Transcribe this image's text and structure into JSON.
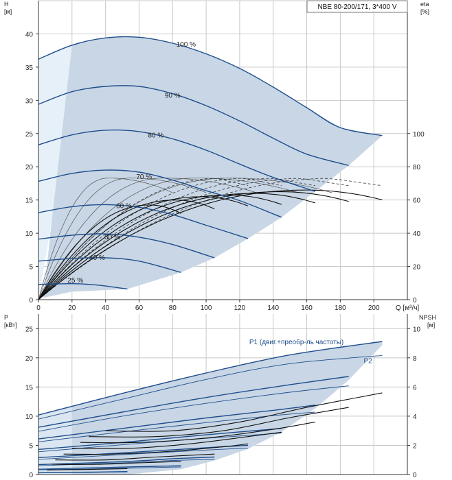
{
  "header": {
    "model": "NBE 80-200/171, 3*400 V"
  },
  "colors": {
    "grid": "#c8c8c8",
    "region": "#c8d6e5",
    "region_light": "#e6f0f8",
    "curve": "#1f4e8c",
    "eff": "#111111",
    "thin": "#555555"
  },
  "chart_data": [
    {
      "type": "line",
      "id": "head",
      "ylabel": "H",
      "yunit": "[м]",
      "y2label": "eta",
      "y2unit": "[%]",
      "xlabel": "Q [м³/ч]",
      "xlim": [
        0,
        220
      ],
      "ylim": [
        0,
        45
      ],
      "y2lim": [
        0,
        180
      ],
      "x_ticks": [
        "0",
        "20",
        "40",
        "60",
        "80",
        "100",
        "120",
        "140",
        "160",
        "180",
        "200"
      ],
      "y_ticks": [
        "0",
        "5",
        "10",
        "15",
        "20",
        "25",
        "30",
        "35",
        "40"
      ],
      "y2_ticks": [
        "0",
        "20",
        "40",
        "60",
        "80",
        "100"
      ],
      "grid": true,
      "speed_curves": [
        {
          "label": "100 %",
          "label_pos": [
            88,
            38.5
          ],
          "points": [
            [
              0,
              36.2
            ],
            [
              20,
              38.3
            ],
            [
              40,
              39.4
            ],
            [
              60,
              39.5
            ],
            [
              80,
              38.6
            ],
            [
              100,
              37.0
            ],
            [
              120,
              34.8
            ],
            [
              140,
              32.0
            ],
            [
              160,
              28.9
            ],
            [
              180,
              25.9
            ],
            [
              205,
              24.7
            ]
          ]
        },
        {
          "label": "90 %",
          "label_pos": [
            80,
            30.8
          ],
          "points": [
            [
              0,
              29.4
            ],
            [
              20,
              31.3
            ],
            [
              40,
              32.1
            ],
            [
              60,
              32.1
            ],
            [
              80,
              31.0
            ],
            [
              100,
              29.2
            ],
            [
              120,
              26.9
            ],
            [
              140,
              24.3
            ],
            [
              160,
              21.9
            ],
            [
              185,
              20.2
            ]
          ]
        },
        {
          "label": "80 %",
          "label_pos": [
            70,
            24.8
          ],
          "points": [
            [
              0,
              23.3
            ],
            [
              20,
              24.8
            ],
            [
              40,
              25.5
            ],
            [
              60,
              25.3
            ],
            [
              80,
              24.2
            ],
            [
              100,
              22.5
            ],
            [
              120,
              20.4
            ],
            [
              140,
              18.4
            ],
            [
              165,
              16.3
            ]
          ]
        },
        {
          "label": "70 %",
          "label_pos": [
            63,
            18.6
          ],
          "points": [
            [
              0,
              17.8
            ],
            [
              20,
              19.0
            ],
            [
              40,
              19.5
            ],
            [
              60,
              19.2
            ],
            [
              80,
              18.0
            ],
            [
              100,
              16.4
            ],
            [
              120,
              14.9
            ],
            [
              145,
              12.4
            ]
          ]
        },
        {
          "label": "60 %",
          "label_pos": [
            51,
            14.2
          ],
          "points": [
            [
              0,
              13.1
            ],
            [
              20,
              14.0
            ],
            [
              40,
              14.3
            ],
            [
              60,
              13.9
            ],
            [
              80,
              12.8
            ],
            [
              100,
              11.2
            ],
            [
              125,
              9.2
            ]
          ]
        },
        {
          "label": "50 %",
          "label_pos": [
            44,
            9.5
          ],
          "points": [
            [
              0,
              9.1
            ],
            [
              20,
              9.7
            ],
            [
              40,
              9.9
            ],
            [
              60,
              9.4
            ],
            [
              80,
              8.3
            ],
            [
              105,
              6.3
            ]
          ]
        },
        {
          "label": "40 %",
          "label_pos": [
            35,
            6.4
          ],
          "points": [
            [
              0,
              5.8
            ],
            [
              20,
              6.2
            ],
            [
              40,
              6.3
            ],
            [
              60,
              5.8
            ],
            [
              85,
              4.1
            ]
          ]
        },
        {
          "label": "25 %",
          "label_pos": [
            22,
            3.0
          ],
          "points": [
            [
              0,
              2.3
            ],
            [
              20,
              2.4
            ],
            [
              35,
              2.2
            ],
            [
              53,
              1.6
            ]
          ]
        }
      ],
      "efficiency_curves": [
        {
          "peak": 66,
          "qend": 205
        },
        {
          "peak": 65,
          "qend": 185
        },
        {
          "peak": 64,
          "qend": 165
        },
        {
          "peak": 63,
          "qend": 145
        },
        {
          "peak": 62,
          "qend": 125
        },
        {
          "peak": 60,
          "qend": 105
        },
        {
          "peak": 57,
          "qend": 85
        }
      ],
      "dashed_efficiency": [
        {
          "peak": 73,
          "qend": 205
        },
        {
          "peak": 73,
          "qend": 185
        },
        {
          "peak": 73,
          "qend": 165
        },
        {
          "peak": 73,
          "qend": 145
        },
        {
          "peak": 73,
          "qend": 125
        }
      ],
      "thin_curves": [
        {
          "peak": 18.3,
          "qpeak": 42,
          "qend": 80
        },
        {
          "peak": 18.3,
          "qpeak": 55,
          "qend": 100
        },
        {
          "peak": 18.3,
          "qpeak": 75,
          "qend": 130
        },
        {
          "peak": 18.3,
          "qpeak": 95,
          "qend": 155
        },
        {
          "peak": 18.3,
          "qpeak": 115,
          "qend": 175
        }
      ]
    },
    {
      "type": "line",
      "id": "power",
      "ylabel": "P",
      "yunit": "[кВт]",
      "y2label": "NPSH",
      "y2unit": "[м]",
      "xlim": [
        0,
        220
      ],
      "ylim": [
        0,
        27.5
      ],
      "y2lim": [
        0,
        11
      ],
      "y_ticks": [
        "0",
        "5",
        "10",
        "15",
        "20",
        "25"
      ],
      "y2_ticks": [
        "0",
        "2",
        "4",
        "6",
        "8",
        "10"
      ],
      "grid": true,
      "series_labels": [
        "P1 (двиг.+преобр-ль частоты)",
        "P2"
      ],
      "p1_curves": [
        {
          "points": [
            [
              0,
              10.2
            ],
            [
              50,
              13.9
            ],
            [
              100,
              17.4
            ],
            [
              150,
              20.5
            ],
            [
              205,
              22.8
            ]
          ]
        },
        {
          "points": [
            [
              0,
              8.1
            ],
            [
              50,
              10.7
            ],
            [
              100,
              13.2
            ],
            [
              150,
              15.4
            ],
            [
              185,
              16.8
            ]
          ]
        },
        {
          "points": [
            [
              0,
              6.1
            ],
            [
              50,
              7.9
            ],
            [
              100,
              9.7
            ],
            [
              140,
              11.0
            ],
            [
              165,
              11.9
            ]
          ]
        },
        {
          "points": [
            [
              0,
              4.3
            ],
            [
              50,
              5.5
            ],
            [
              100,
              6.8
            ],
            [
              145,
              7.9
            ]
          ]
        },
        {
          "points": [
            [
              0,
              2.9
            ],
            [
              50,
              3.7
            ],
            [
              100,
              4.6
            ],
            [
              125,
              5.0
            ]
          ]
        },
        {
          "points": [
            [
              0,
              1.7
            ],
            [
              50,
              2.2
            ],
            [
              80,
              2.7
            ],
            [
              105,
              3.0
            ]
          ]
        },
        {
          "points": [
            [
              0,
              0.9
            ],
            [
              40,
              1.2
            ],
            [
              85,
              1.5
            ]
          ]
        },
        {
          "points": [
            [
              0,
              0.3
            ],
            [
              30,
              0.4
            ],
            [
              53,
              0.5
            ]
          ]
        }
      ],
      "p2_curves": [
        {
          "points": [
            [
              0,
              9.5
            ],
            [
              50,
              12.9
            ],
            [
              100,
              16.3
            ],
            [
              150,
              19.0
            ],
            [
              205,
              20.4
            ]
          ]
        },
        {
          "points": [
            [
              0,
              7.4
            ],
            [
              50,
              10.0
            ],
            [
              100,
              12.2
            ],
            [
              150,
              14.1
            ],
            [
              185,
              15.2
            ]
          ]
        },
        {
          "points": [
            [
              0,
              5.6
            ],
            [
              50,
              7.3
            ],
            [
              100,
              8.9
            ],
            [
              140,
              10.1
            ],
            [
              165,
              10.7
            ]
          ]
        },
        {
          "points": [
            [
              0,
              3.9
            ],
            [
              50,
              5.1
            ],
            [
              100,
              6.2
            ],
            [
              145,
              7.1
            ]
          ]
        },
        {
          "points": [
            [
              0,
              2.6
            ],
            [
              50,
              3.4
            ],
            [
              100,
              4.2
            ],
            [
              125,
              4.5
            ]
          ]
        },
        {
          "points": [
            [
              0,
              1.5
            ],
            [
              50,
              2.0
            ],
            [
              80,
              2.4
            ],
            [
              105,
              2.6
            ]
          ]
        },
        {
          "points": [
            [
              0,
              0.8
            ],
            [
              40,
              1.0
            ],
            [
              85,
              1.3
            ]
          ]
        },
        {
          "points": [
            [
              0,
              0.3
            ],
            [
              30,
              0.35
            ],
            [
              53,
              0.45
            ]
          ]
        }
      ],
      "npsh_curves": [
        {
          "points": [
            [
              40,
              3.0
            ],
            [
              80,
              3.0
            ],
            [
              120,
              3.6
            ],
            [
              160,
              4.6
            ],
            [
              205,
              5.6
            ]
          ]
        },
        {
          "points": [
            [
              30,
              2.6
            ],
            [
              70,
              2.6
            ],
            [
              110,
              3.0
            ],
            [
              150,
              3.9
            ],
            [
              185,
              4.6
            ]
          ]
        },
        {
          "points": [
            [
              25,
              2.2
            ],
            [
              60,
              2.2
            ],
            [
              100,
              2.5
            ],
            [
              140,
              3.1
            ],
            [
              165,
              3.6
            ]
          ]
        },
        {
          "points": [
            [
              20,
              1.8
            ],
            [
              55,
              1.8
            ],
            [
              90,
              2.1
            ],
            [
              125,
              2.6
            ],
            [
              145,
              2.9
            ]
          ]
        },
        {
          "points": [
            [
              15,
              1.4
            ],
            [
              45,
              1.4
            ],
            [
              80,
              1.6
            ],
            [
              110,
              1.9
            ],
            [
              125,
              2.1
            ]
          ]
        },
        {
          "points": [
            [
              10,
              1.0
            ],
            [
              40,
              1.0
            ],
            [
              70,
              1.2
            ],
            [
              105,
              1.4
            ]
          ]
        },
        {
          "points": [
            [
              8,
              0.7
            ],
            [
              35,
              0.7
            ],
            [
              60,
              0.8
            ],
            [
              85,
              0.9
            ]
          ]
        },
        {
          "points": [
            [
              5,
              0.3
            ],
            [
              30,
              0.35
            ],
            [
              53,
              0.4
            ]
          ]
        }
      ]
    }
  ]
}
